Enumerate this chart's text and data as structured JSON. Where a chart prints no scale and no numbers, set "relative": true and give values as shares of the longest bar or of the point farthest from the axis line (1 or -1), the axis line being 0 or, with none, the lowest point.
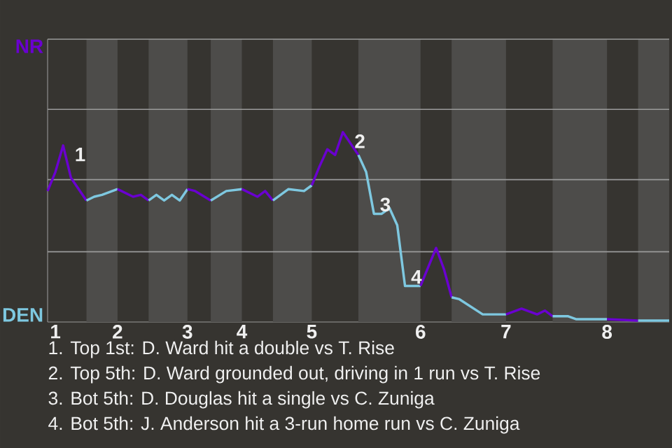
{
  "chart_data": {
    "type": "line",
    "relative": true,
    "categories": [
      null,
      "1",
      null,
      null,
      null,
      null,
      null,
      null,
      null,
      "2",
      null,
      null,
      null,
      null,
      null,
      null,
      null,
      null,
      "3",
      null,
      null,
      null,
      null,
      null,
      null,
      "4",
      null,
      null,
      null,
      null,
      null,
      null,
      null,
      null,
      "5",
      null,
      null,
      null,
      null,
      null,
      null,
      null,
      null,
      null,
      null,
      null,
      null,
      null,
      "6",
      null,
      null,
      null,
      null,
      null,
      null,
      null,
      null,
      null,
      null,
      "7",
      null,
      null,
      null,
      null,
      null,
      null,
      null,
      null,
      null,
      null,
      null,
      null,
      "8",
      null,
      null,
      null,
      null,
      null,
      null,
      null,
      null
    ],
    "marker": "none",
    "line_style": "solid",
    "series": [
      {
        "color": "#6a00d0",
        "values": [
          0.69,
          0.79,
          0.93,
          0.76,
          null,
          0.64,
          null,
          null,
          null,
          null,
          null,
          null,
          null,
          null,
          null,
          null,
          null,
          null,
          null,
          null,
          null,
          null,
          null,
          null,
          null,
          null,
          null,
          null,
          null,
          null,
          null,
          null,
          null,
          null,
          null,
          null,
          null,
          null,
          null,
          null,
          null,
          null,
          null,
          null,
          null,
          null,
          null,
          null,
          null,
          null,
          null,
          null,
          null,
          null,
          null,
          null,
          null,
          null,
          null,
          null,
          null,
          null,
          null,
          null,
          null,
          null,
          null,
          null,
          null,
          null,
          null,
          null,
          null,
          null,
          null,
          null,
          null,
          null,
          null,
          null,
          null
        ]
      },
      {
        "color": "#7ec8e0",
        "values": [
          null,
          null,
          null,
          null,
          null,
          0.64,
          0.66,
          0.67,
          null,
          0.7,
          null,
          null,
          null,
          null,
          null,
          null,
          null,
          null,
          null,
          null,
          null,
          null,
          null,
          null,
          null,
          null,
          null,
          null,
          null,
          null,
          null,
          null,
          null,
          null,
          null,
          null,
          null,
          null,
          null,
          null,
          null,
          null,
          null,
          null,
          null,
          null,
          null,
          null,
          null,
          null,
          null,
          null,
          null,
          null,
          null,
          null,
          null,
          null,
          null,
          null,
          null,
          null,
          null,
          null,
          null,
          null,
          null,
          null,
          null,
          null,
          null,
          null,
          null,
          null,
          null,
          null,
          null,
          null,
          null,
          null,
          null
        ]
      },
      {
        "color": "#6a00d0",
        "values": [
          null,
          null,
          null,
          null,
          null,
          null,
          null,
          null,
          null,
          0.7,
          null,
          0.66,
          0.67,
          0.64,
          null,
          null,
          null,
          null,
          null,
          null,
          null,
          null,
          null,
          null,
          null,
          null,
          null,
          null,
          null,
          null,
          null,
          null,
          null,
          null,
          null,
          null,
          null,
          null,
          null,
          null,
          null,
          null,
          null,
          null,
          null,
          null,
          null,
          null,
          null,
          null,
          null,
          null,
          null,
          null,
          null,
          null,
          null,
          null,
          null,
          null,
          null,
          null,
          null,
          null,
          null,
          null,
          null,
          null,
          null,
          null,
          null,
          null,
          null,
          null,
          null,
          null,
          null,
          null,
          null,
          null,
          null
        ]
      },
      {
        "color": "#7ec8e0",
        "values": [
          null,
          null,
          null,
          null,
          null,
          null,
          null,
          null,
          null,
          null,
          null,
          null,
          null,
          0.64,
          0.67,
          0.64,
          0.67,
          0.64,
          0.7,
          null,
          null,
          null,
          null,
          null,
          null,
          null,
          null,
          null,
          null,
          null,
          null,
          null,
          null,
          null,
          null,
          null,
          null,
          null,
          null,
          null,
          null,
          null,
          null,
          null,
          null,
          null,
          null,
          null,
          null,
          null,
          null,
          null,
          null,
          null,
          null,
          null,
          null,
          null,
          null,
          null,
          null,
          null,
          null,
          null,
          null,
          null,
          null,
          null,
          null,
          null,
          null,
          null,
          null,
          null,
          null,
          null,
          null,
          null,
          null,
          null,
          null
        ]
      },
      {
        "color": "#6a00d0",
        "values": [
          null,
          null,
          null,
          null,
          null,
          null,
          null,
          null,
          null,
          null,
          null,
          null,
          null,
          null,
          null,
          null,
          null,
          null,
          0.7,
          0.69,
          null,
          0.64,
          null,
          null,
          null,
          null,
          null,
          null,
          null,
          null,
          null,
          null,
          null,
          null,
          null,
          null,
          null,
          null,
          null,
          null,
          null,
          null,
          null,
          null,
          null,
          null,
          null,
          null,
          null,
          null,
          null,
          null,
          null,
          null,
          null,
          null,
          null,
          null,
          null,
          null,
          null,
          null,
          null,
          null,
          null,
          null,
          null,
          null,
          null,
          null,
          null,
          null,
          null,
          null,
          null,
          null,
          null,
          null,
          null,
          null,
          null
        ]
      },
      {
        "color": "#7ec8e0",
        "values": [
          null,
          null,
          null,
          null,
          null,
          null,
          null,
          null,
          null,
          null,
          null,
          null,
          null,
          null,
          null,
          null,
          null,
          null,
          null,
          null,
          null,
          0.64,
          null,
          0.69,
          null,
          0.7,
          null,
          null,
          null,
          null,
          null,
          null,
          null,
          null,
          null,
          null,
          null,
          null,
          null,
          null,
          null,
          null,
          null,
          null,
          null,
          null,
          null,
          null,
          null,
          null,
          null,
          null,
          null,
          null,
          null,
          null,
          null,
          null,
          null,
          null,
          null,
          null,
          null,
          null,
          null,
          null,
          null,
          null,
          null,
          null,
          null,
          null,
          null,
          null,
          null,
          null,
          null,
          null,
          null,
          null,
          null
        ]
      },
      {
        "color": "#6a00d0",
        "values": [
          null,
          null,
          null,
          null,
          null,
          null,
          null,
          null,
          null,
          null,
          null,
          null,
          null,
          null,
          null,
          null,
          null,
          null,
          null,
          null,
          null,
          null,
          null,
          null,
          null,
          0.7,
          null,
          0.66,
          0.69,
          0.64,
          null,
          null,
          null,
          null,
          null,
          null,
          null,
          null,
          null,
          null,
          null,
          null,
          null,
          null,
          null,
          null,
          null,
          null,
          null,
          null,
          null,
          null,
          null,
          null,
          null,
          null,
          null,
          null,
          null,
          null,
          null,
          null,
          null,
          null,
          null,
          null,
          null,
          null,
          null,
          null,
          null,
          null,
          null,
          null,
          null,
          null,
          null,
          null,
          null,
          null,
          null
        ]
      },
      {
        "color": "#7ec8e0",
        "values": [
          null,
          null,
          null,
          null,
          null,
          null,
          null,
          null,
          null,
          null,
          null,
          null,
          null,
          null,
          null,
          null,
          null,
          null,
          null,
          null,
          null,
          null,
          null,
          null,
          null,
          null,
          null,
          null,
          null,
          0.64,
          null,
          0.7,
          null,
          0.69,
          0.72,
          null,
          null,
          null,
          null,
          null,
          null,
          null,
          null,
          null,
          null,
          null,
          null,
          null,
          null,
          null,
          null,
          null,
          null,
          null,
          null,
          null,
          null,
          null,
          null,
          null,
          null,
          null,
          null,
          null,
          null,
          null,
          null,
          null,
          null,
          null,
          null,
          null,
          null,
          null,
          null,
          null,
          null,
          null,
          null,
          null,
          null
        ]
      },
      {
        "color": "#6a00d0",
        "values": [
          null,
          null,
          null,
          null,
          null,
          null,
          null,
          null,
          null,
          null,
          null,
          null,
          null,
          null,
          null,
          null,
          null,
          null,
          null,
          null,
          null,
          null,
          null,
          null,
          null,
          null,
          null,
          null,
          null,
          null,
          null,
          null,
          null,
          null,
          0.72,
          0.82,
          0.91,
          0.88,
          1,
          0.94,
          0.88,
          null,
          null,
          null,
          null,
          null,
          null,
          null,
          null,
          null,
          null,
          null,
          null,
          null,
          null,
          null,
          null,
          null,
          null,
          null,
          null,
          null,
          null,
          null,
          null,
          null,
          null,
          null,
          null,
          null,
          null,
          null,
          null,
          null,
          null,
          null,
          null,
          null,
          null,
          null,
          null
        ]
      },
      {
        "color": "#7ec8e0",
        "values": [
          null,
          null,
          null,
          null,
          null,
          null,
          null,
          null,
          null,
          null,
          null,
          null,
          null,
          null,
          null,
          null,
          null,
          null,
          null,
          null,
          null,
          null,
          null,
          null,
          null,
          null,
          null,
          null,
          null,
          null,
          null,
          null,
          null,
          null,
          null,
          null,
          null,
          null,
          null,
          null,
          0.88,
          0.79,
          0.57,
          0.57,
          0.6,
          0.51,
          0.19,
          0.19,
          0.19,
          null,
          null,
          null,
          null,
          null,
          null,
          null,
          null,
          null,
          null,
          null,
          null,
          null,
          null,
          null,
          null,
          null,
          null,
          null,
          null,
          null,
          null,
          null,
          null,
          null,
          null,
          null,
          null,
          null,
          null,
          null,
          null
        ]
      },
      {
        "color": "#6a00d0",
        "values": [
          null,
          null,
          null,
          null,
          null,
          null,
          null,
          null,
          null,
          null,
          null,
          null,
          null,
          null,
          null,
          null,
          null,
          null,
          null,
          null,
          null,
          null,
          null,
          null,
          null,
          null,
          null,
          null,
          null,
          null,
          null,
          null,
          null,
          null,
          null,
          null,
          null,
          null,
          null,
          null,
          null,
          null,
          null,
          null,
          null,
          null,
          null,
          null,
          0.19,
          null,
          0.39,
          0.28,
          0.13,
          null,
          null,
          null,
          null,
          null,
          null,
          null,
          null,
          null,
          null,
          null,
          null,
          null,
          null,
          null,
          null,
          null,
          null,
          null,
          null,
          null,
          null,
          null,
          null,
          null,
          null,
          null,
          null
        ]
      },
      {
        "color": "#7ec8e0",
        "values": [
          null,
          null,
          null,
          null,
          null,
          null,
          null,
          null,
          null,
          null,
          null,
          null,
          null,
          null,
          null,
          null,
          null,
          null,
          null,
          null,
          null,
          null,
          null,
          null,
          null,
          null,
          null,
          null,
          null,
          null,
          null,
          null,
          null,
          null,
          null,
          null,
          null,
          null,
          null,
          null,
          null,
          null,
          null,
          null,
          null,
          null,
          null,
          null,
          null,
          null,
          null,
          null,
          0.13,
          0.12,
          null,
          null,
          0.04,
          null,
          0.04,
          0.04,
          null,
          null,
          null,
          null,
          null,
          null,
          null,
          null,
          null,
          null,
          null,
          null,
          null,
          null,
          null,
          null,
          null,
          null,
          null,
          null,
          null
        ]
      },
      {
        "color": "#6a00d0",
        "values": [
          null,
          null,
          null,
          null,
          null,
          null,
          null,
          null,
          null,
          null,
          null,
          null,
          null,
          null,
          null,
          null,
          null,
          null,
          null,
          null,
          null,
          null,
          null,
          null,
          null,
          null,
          null,
          null,
          null,
          null,
          null,
          null,
          null,
          null,
          null,
          null,
          null,
          null,
          null,
          null,
          null,
          null,
          null,
          null,
          null,
          null,
          null,
          null,
          null,
          null,
          null,
          null,
          null,
          null,
          null,
          null,
          null,
          null,
          null,
          0.04,
          null,
          0.07,
          null,
          0.04,
          0.06,
          0.03,
          null,
          null,
          null,
          null,
          null,
          null,
          null,
          null,
          null,
          null,
          null,
          null,
          null,
          null,
          null
        ]
      },
      {
        "color": "#7ec8e0",
        "values": [
          null,
          null,
          null,
          null,
          null,
          null,
          null,
          null,
          null,
          null,
          null,
          null,
          null,
          null,
          null,
          null,
          null,
          null,
          null,
          null,
          null,
          null,
          null,
          null,
          null,
          null,
          null,
          null,
          null,
          null,
          null,
          null,
          null,
          null,
          null,
          null,
          null,
          null,
          null,
          null,
          null,
          null,
          null,
          null,
          null,
          null,
          null,
          null,
          null,
          null,
          null,
          null,
          null,
          null,
          null,
          null,
          null,
          null,
          null,
          null,
          null,
          null,
          null,
          null,
          null,
          0.03,
          0.03,
          0.03,
          0.015,
          null,
          null,
          null,
          0.015,
          null,
          null,
          null,
          null,
          null,
          null,
          null,
          null
        ]
      },
      {
        "color": "#6a00d0",
        "values": [
          null,
          null,
          null,
          null,
          null,
          null,
          null,
          null,
          null,
          null,
          null,
          null,
          null,
          null,
          null,
          null,
          null,
          null,
          null,
          null,
          null,
          null,
          null,
          null,
          null,
          null,
          null,
          null,
          null,
          null,
          null,
          null,
          null,
          null,
          null,
          null,
          null,
          null,
          null,
          null,
          null,
          null,
          null,
          null,
          null,
          null,
          null,
          null,
          null,
          null,
          null,
          null,
          null,
          null,
          null,
          null,
          null,
          null,
          null,
          null,
          null,
          null,
          null,
          null,
          null,
          null,
          null,
          null,
          null,
          null,
          null,
          null,
          0.015,
          null,
          null,
          null,
          0.007,
          null,
          null,
          null,
          null
        ]
      },
      {
        "color": "#7ec8e0",
        "values": [
          null,
          null,
          null,
          null,
          null,
          null,
          null,
          null,
          null,
          null,
          null,
          null,
          null,
          null,
          null,
          null,
          null,
          null,
          null,
          null,
          null,
          null,
          null,
          null,
          null,
          null,
          null,
          null,
          null,
          null,
          null,
          null,
          null,
          null,
          null,
          null,
          null,
          null,
          null,
          null,
          null,
          null,
          null,
          null,
          null,
          null,
          null,
          null,
          null,
          null,
          null,
          null,
          null,
          null,
          null,
          null,
          null,
          null,
          null,
          null,
          null,
          null,
          null,
          null,
          null,
          null,
          null,
          null,
          null,
          null,
          null,
          null,
          null,
          null,
          null,
          null,
          0.007,
          null,
          null,
          null,
          0.007
        ]
      }
    ],
    "ref_lines": [
      {
        "axis": "y",
        "value": 0.37,
        "color": "#9a9a9a"
      },
      {
        "axis": "y",
        "value": 0.75,
        "color": "#9a9a9a"
      },
      {
        "axis": "y",
        "value": 1.12,
        "color": "#9a9a9a"
      },
      {
        "axis": "y",
        "value": 1.49,
        "color": "#9a9a9a"
      }
    ],
    "annotations": [
      "NR",
      "DEN",
      "1",
      "2",
      "3",
      "4",
      "1. Top 1st: D. Ward hit a double vs T. Rise",
      "2. Top 5th: D. Ward grounded out, driving in 1 run vs T. Rise",
      "3. Bot 5th: D. Douglas hit a single vs C. Zuniga",
      "4. Bot 5th: J. Anderson hit a 3-run home run vs C. Zuniga"
    ]
  }
}
